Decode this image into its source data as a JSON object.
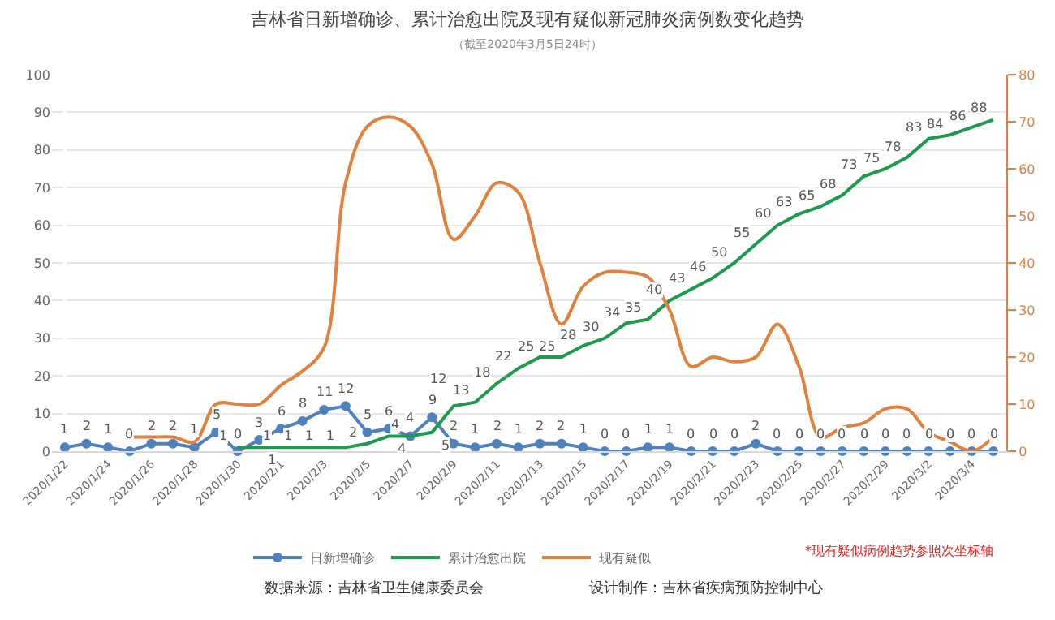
{
  "chart_data": {
    "type": "line",
    "title": "吉林省日新增确诊、累计治愈出院及现有疑似新冠肺炎病例数变化趋势",
    "subtitle": "（截至2020年3月5日24时）",
    "categories": [
      "2020/1/22",
      null,
      "2020/1/24",
      null,
      "2020/1/26",
      null,
      "2020/1/28",
      null,
      "2020/1/30",
      null,
      "2020/2/1",
      null,
      "2020/2/3",
      null,
      "2020/2/5",
      null,
      "2020/2/7",
      null,
      "2020/2/9",
      null,
      "2020/2/11",
      null,
      "2020/2/13",
      null,
      "2020/2/15",
      null,
      "2020/2/17",
      null,
      "2020/2/19",
      null,
      "2020/2/21",
      null,
      "2020/2/23",
      null,
      "2020/2/25",
      null,
      "2020/2/27",
      null,
      "2020/2/29",
      null,
      "2020/3/2",
      null,
      "2020/3/4",
      null
    ],
    "series": [
      {
        "name": "日新增确诊",
        "color": "#4f81bd",
        "marker": "circle",
        "values": [
          1,
          2,
          1,
          0,
          2,
          2,
          1,
          5,
          0,
          3,
          6,
          8,
          11,
          12,
          5,
          6,
          4,
          9,
          2,
          1,
          2,
          1,
          2,
          2,
          1,
          0,
          0,
          1,
          1,
          0,
          0,
          0,
          2,
          0,
          0,
          0,
          0,
          0,
          0,
          0,
          0,
          0,
          0,
          0
        ],
        "value_labels": [
          "1",
          "2",
          "1",
          "0",
          "2",
          "2",
          "1",
          "5",
          "0",
          "3",
          "6",
          "8",
          "11",
          "12",
          "5",
          "6",
          "4",
          "9",
          "2",
          "1",
          "2",
          "1",
          "2",
          "2",
          "1",
          "0",
          "0",
          "1",
          "1",
          "0",
          "0",
          "0",
          "2",
          "0",
          "0",
          "0",
          "0",
          "0",
          "0",
          "0",
          "0",
          "0",
          "0",
          "0"
        ]
      },
      {
        "name": "累计治愈出院",
        "color": "#1e9a4f",
        "marker": "none",
        "values": [
          null,
          null,
          null,
          null,
          null,
          null,
          null,
          null,
          1,
          1,
          1,
          1,
          1,
          1,
          2,
          4,
          4,
          5,
          12,
          13,
          18,
          22,
          25,
          25,
          28,
          30,
          34,
          35,
          40,
          43,
          46,
          50,
          55,
          60,
          63,
          65,
          68,
          73,
          75,
          78,
          83,
          84,
          86,
          88
        ],
        "value_labels": [
          null,
          null,
          null,
          null,
          null,
          null,
          null,
          null,
          "1",
          "1",
          "1",
          "1",
          "1",
          "1",
          "2",
          "4",
          "4",
          "5",
          "12",
          "13",
          "18",
          "22",
          "25",
          "25",
          "28",
          "30",
          "34",
          "35",
          "40",
          "43",
          "46",
          "50",
          "55",
          "60",
          "63",
          "65",
          "68",
          "73",
          "75",
          "78",
          "83",
          "84",
          "86",
          "88"
        ]
      },
      {
        "name": "现有疑似",
        "color": "#e0823d",
        "marker": "none",
        "axis": "y2",
        "values": [
          null,
          null,
          null,
          3,
          3,
          3,
          2,
          10,
          10,
          10,
          14,
          17,
          22,
          57,
          69,
          71,
          69,
          61,
          45,
          50,
          57,
          55,
          40,
          27,
          35,
          38,
          38,
          37,
          30,
          18,
          20,
          19,
          20,
          27,
          18,
          3,
          5,
          6,
          9,
          9,
          4,
          2,
          0,
          3
        ]
      }
    ],
    "ylim": [
      0,
      100
    ],
    "yticks": [
      0,
      10,
      20,
      30,
      40,
      50,
      60,
      70,
      80,
      90,
      100
    ],
    "y2lim": [
      0,
      80
    ],
    "y2ticks": [
      0,
      10,
      20,
      30,
      40,
      50,
      60,
      70,
      80
    ],
    "grid": "y",
    "legend": "bottom",
    "line_style": "solid",
    "annotations": [
      "*现有疑似病例趋势参照次坐标轴",
      "数据来源：吉林省卫生健康委员会",
      "设计制作：吉林省疾病预防控制中心"
    ]
  }
}
